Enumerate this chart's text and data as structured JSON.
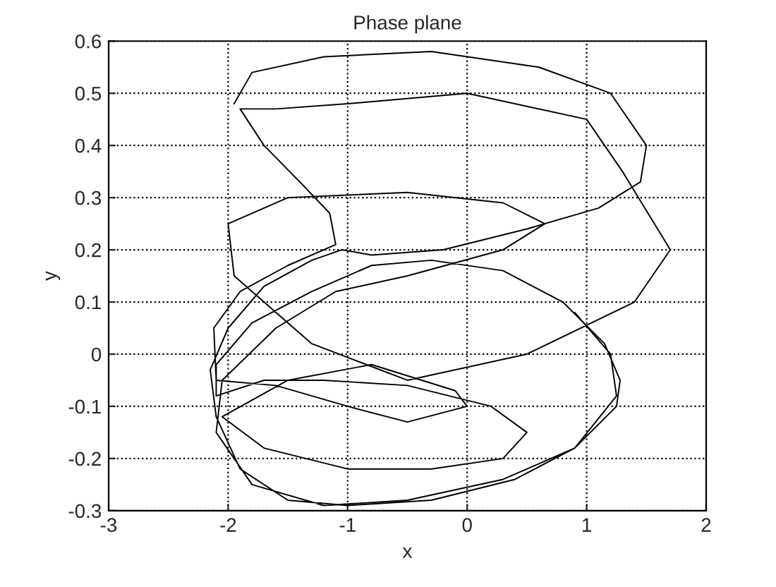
{
  "chart_data": {
    "type": "line",
    "title": "Phase plane",
    "xlabel": "x",
    "ylabel": "y",
    "xlim": [
      -3,
      2
    ],
    "ylim": [
      -0.3,
      0.6
    ],
    "xticks": [
      -3,
      -2,
      -1,
      0,
      1,
      2
    ],
    "yticks": [
      -0.3,
      -0.2,
      -0.1,
      0,
      0.1,
      0.2,
      0.3,
      0.4,
      0.5,
      0.6
    ],
    "grid": true,
    "line_style": "solid",
    "marker": "none",
    "series": [
      {
        "color": "#000000",
        "x": [
          -1.95,
          -1.8,
          -1.2,
          -0.3,
          0.6,
          1.2,
          1.5,
          1.45,
          1.1,
          0.5,
          -0.2,
          -0.8,
          -1.05,
          -1.3,
          -1.7,
          -2.0,
          -2.15,
          -2.1,
          -1.9,
          -1.5,
          -1.0,
          -0.3,
          0.4,
          0.9,
          1.25,
          1.28,
          1.15,
          0.8,
          0.3,
          -0.3,
          -0.8,
          -1.3,
          -1.8,
          -2.1,
          -2.1,
          -1.7,
          -1.2,
          -0.5,
          0.2,
          0.5,
          0.3,
          -0.3,
          -1.0,
          -1.7,
          -2.05,
          -1.5,
          -0.8,
          -0.1,
          0.0,
          -0.5,
          -1.0,
          -1.6,
          -2.1,
          -2.12,
          -1.9,
          -1.5,
          -1.1,
          -1.15,
          -1.4,
          -1.7,
          -1.9,
          -1.6,
          -1.0,
          0.0,
          1.0,
          1.3,
          1.7,
          1.4,
          0.5,
          -0.5,
          -1.3,
          -1.95,
          -2.0,
          -1.5,
          -0.5,
          0.3,
          0.65,
          0.3,
          -0.5,
          -1.1,
          -1.6,
          -2.05,
          -2.1,
          -1.8,
          -1.2,
          -0.5,
          0.3,
          0.9,
          1.25,
          1.2,
          0.9
        ],
        "values": [
          0.48,
          0.54,
          0.57,
          0.58,
          0.55,
          0.5,
          0.4,
          0.33,
          0.28,
          0.24,
          0.2,
          0.19,
          0.2,
          0.18,
          0.13,
          0.05,
          -0.03,
          -0.12,
          -0.22,
          -0.28,
          -0.29,
          -0.28,
          -0.24,
          -0.18,
          -0.1,
          -0.05,
          0.02,
          0.1,
          0.16,
          0.18,
          0.17,
          0.12,
          0.06,
          -0.02,
          -0.08,
          -0.05,
          -0.05,
          -0.06,
          -0.1,
          -0.15,
          -0.2,
          -0.22,
          -0.22,
          -0.18,
          -0.12,
          -0.05,
          -0.02,
          -0.07,
          -0.1,
          -0.13,
          -0.1,
          -0.06,
          -0.05,
          0.05,
          0.12,
          0.17,
          0.21,
          0.27,
          0.33,
          0.4,
          0.47,
          0.47,
          0.48,
          0.5,
          0.45,
          0.35,
          0.2,
          0.1,
          0.0,
          -0.05,
          0.02,
          0.15,
          0.25,
          0.3,
          0.31,
          0.29,
          0.25,
          0.2,
          0.15,
          0.12,
          0.05,
          -0.05,
          -0.15,
          -0.25,
          -0.29,
          -0.28,
          -0.24,
          -0.18,
          -0.08,
          0.0,
          0.08
        ]
      }
    ]
  }
}
